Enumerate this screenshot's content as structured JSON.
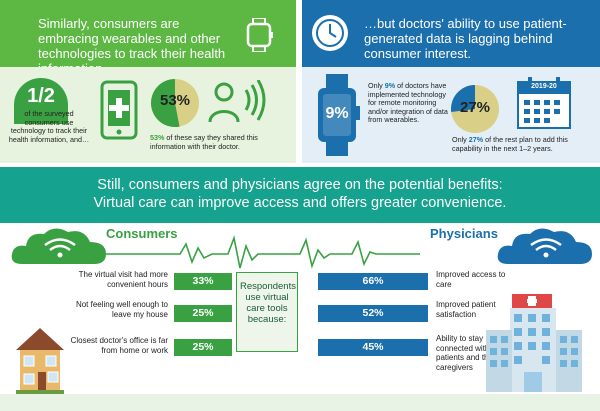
{
  "left_panel": {
    "headline": "Similarly, consumers are embracing wearables and other technologies to track their health information…",
    "fraction": "1/2",
    "fraction_caption": "of the surveyed consumers use technology to track their health information, and…",
    "share_percent_text": "53%",
    "share_percent_value": 53,
    "share_caption_strong": "53%",
    "share_caption_rest": " of these say they shared this information with their doctor.",
    "icons": [
      "watch-icon",
      "smartphone-medical-icon",
      "person-broadcast-icon"
    ]
  },
  "right_panel": {
    "headline": "…but doctors' ability to use patient-generated data is lagging behind consumer interest.",
    "watch_percent_text": "9%",
    "doctors_caption_prefix": "Only ",
    "doctors_caption_strong": "9%",
    "doctors_caption_rest": " of doctors have implemented technology for remote monitoring and/or integration of data from wearables.",
    "plan_percent_text": "27%",
    "plan_percent_value": 27,
    "calendar_label": "2019-20",
    "plan_caption_prefix": "Only ",
    "plan_caption_strong": "27%",
    "plan_caption_rest": " of the rest plan to add this capability in the next 1–2 years.",
    "icons": [
      "clock-icon",
      "smartwatch-icon",
      "calendar-icon"
    ]
  },
  "band": {
    "line1": "Still, consumers and physicians agree on the potential benefits:",
    "line2": "Virtual care can improve access and offers greater convenience."
  },
  "comparison": {
    "consumers_title": "Consumers",
    "physicians_title": "Physicians",
    "center_text": "Respondents use virtual care tools because:",
    "consumers": [
      {
        "label": "The virtual visit had more convenient hours",
        "value_text": "33%",
        "value": 33
      },
      {
        "label": "Not feeling well enough to leave my house",
        "value_text": "25%",
        "value": 25
      },
      {
        "label": "Closest doctor's office is far from home or work",
        "value_text": "25%",
        "value": 25
      }
    ],
    "physicians": [
      {
        "label": "Improved access to care",
        "value_text": "66%",
        "value": 66
      },
      {
        "label": "Improved patient satisfaction",
        "value_text": "52%",
        "value": 52
      },
      {
        "label": "Ability to stay connected with patients and their caregivers",
        "value_text": "45%",
        "value": 45
      }
    ],
    "colors": {
      "consumer": "#3aa142",
      "physician": "#1b6fad",
      "band": "#15a28f"
    },
    "icons": [
      "house-icon",
      "hospital-icon",
      "cloud-wifi-icon",
      "heartbeat-line-icon"
    ]
  }
}
